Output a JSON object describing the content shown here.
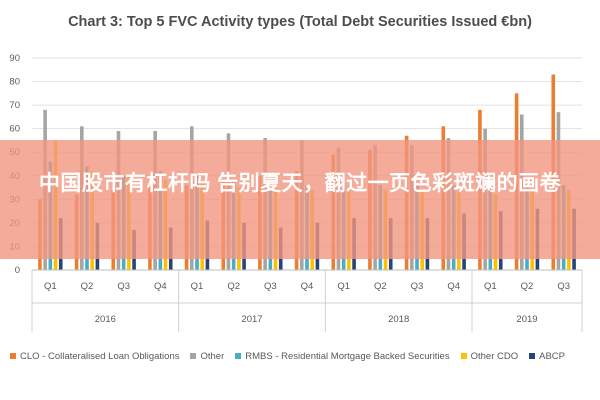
{
  "overlay": {
    "text": "中国股市有杠杆吗 告别夏天，翻过一页色彩斑斓的画卷"
  },
  "chart_data": {
    "type": "bar",
    "title": "Chart 3: Top 5 FVC Activity types (Total Debt Securities Issued €bn)",
    "xlabel": "",
    "ylabel": "",
    "ylim": [
      0,
      90
    ],
    "yticks": [
      0,
      10,
      20,
      30,
      40,
      50,
      60,
      70,
      80,
      90
    ],
    "grid": true,
    "legend_position": "bottom",
    "categories": [
      "Q1",
      "Q2",
      "Q3",
      "Q4",
      "Q1",
      "Q2",
      "Q3",
      "Q4",
      "Q1",
      "Q2",
      "Q3",
      "Q4",
      "Q1",
      "Q2",
      "Q3"
    ],
    "groups": [
      {
        "label": "2016",
        "start": 0,
        "count": 4
      },
      {
        "label": "2017",
        "start": 4,
        "count": 4
      },
      {
        "label": "2018",
        "start": 8,
        "count": 4
      },
      {
        "label": "2019",
        "start": 12,
        "count": 3
      }
    ],
    "series": [
      {
        "name": "CLO - Collateralised Loan Obligations",
        "color": "#ed7d31",
        "values": [
          30,
          32,
          34,
          35,
          36,
          38,
          40,
          42,
          49,
          51,
          57,
          61,
          68,
          75,
          83
        ]
      },
      {
        "name": "Other",
        "color": "#a5a5a5",
        "values": [
          68,
          61,
          59,
          59,
          61,
          58,
          56,
          55,
          52,
          53,
          53,
          56,
          60,
          66,
          67
        ]
      },
      {
        "name": "RMBS - Residential Mortgage Backed Securities",
        "color": "#4bacc6",
        "values": [
          46,
          44,
          40,
          42,
          40,
          38,
          38,
          36,
          36,
          36,
          36,
          36,
          36,
          36,
          36
        ]
      },
      {
        "name": "Other CDO",
        "color": "#ffc000",
        "values": [
          55,
          42,
          39,
          38,
          37,
          35,
          35,
          34,
          34,
          34,
          33,
          33,
          32,
          34,
          34
        ]
      },
      {
        "name": "ABCP",
        "color": "#264478",
        "values": [
          22,
          20,
          17,
          18,
          21,
          20,
          18,
          20,
          22,
          22,
          22,
          24,
          25,
          26,
          26
        ]
      }
    ]
  }
}
